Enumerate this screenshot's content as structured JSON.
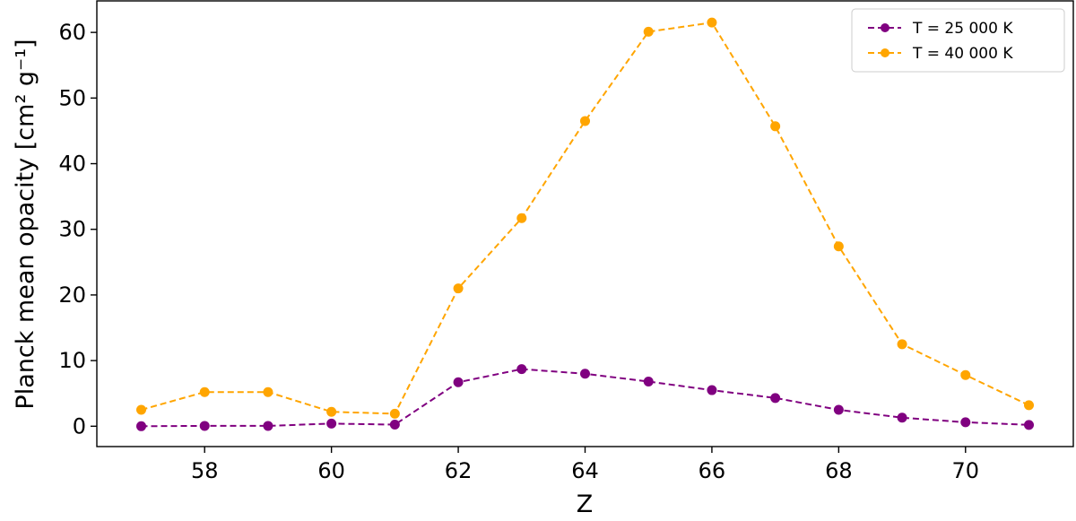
{
  "chart_data": {
    "type": "line",
    "xlabel": "Z",
    "ylabel": "Planck mean opacity [cm² g⁻¹]",
    "xlim": [
      56.3,
      71.7
    ],
    "ylim": [
      -3.1,
      64.8
    ],
    "xticks": [
      58,
      60,
      62,
      64,
      66,
      68,
      70
    ],
    "yticks": [
      0,
      10,
      20,
      30,
      40,
      50,
      60
    ],
    "grid": false,
    "legend_position": "top-right",
    "line_style": "dashed",
    "marker": "circle",
    "x": [
      57,
      58,
      59,
      60,
      61,
      62,
      63,
      64,
      65,
      66,
      67,
      68,
      69,
      70,
      71
    ],
    "series": [
      {
        "name": "T = 25 000 K",
        "color": "#800080",
        "values": [
          0.0,
          0.05,
          0.05,
          0.4,
          0.25,
          6.7,
          8.7,
          8.0,
          6.8,
          5.5,
          4.3,
          2.5,
          1.3,
          0.6,
          0.2
        ]
      },
      {
        "name": "T = 40 000 K",
        "color": "#FFA500",
        "values": [
          2.5,
          5.2,
          5.2,
          2.2,
          1.9,
          21.0,
          31.7,
          46.5,
          60.1,
          61.5,
          45.7,
          27.4,
          12.5,
          7.8,
          3.2
        ]
      }
    ]
  }
}
